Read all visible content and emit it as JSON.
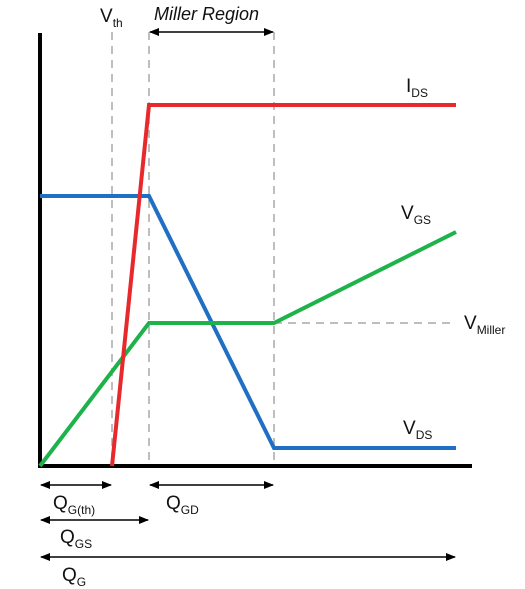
{
  "diagram": {
    "title": "Miller Region",
    "markers": {
      "vth": {
        "main": "V",
        "sub": "th"
      }
    },
    "curve_labels": {
      "ids": {
        "main": "I",
        "sub": "DS",
        "color": "#e8292b"
      },
      "vgs": {
        "main": "V",
        "sub": "GS",
        "color": "#1db34a"
      },
      "vds": {
        "main": "V",
        "sub": "DS",
        "color": "#1f6fc5"
      },
      "vmiller": {
        "main": "V",
        "sub": "Miller"
      }
    },
    "charge_labels": {
      "qgth": {
        "main": "Q",
        "sub": "G(th)"
      },
      "qgd": {
        "main": "Q",
        "sub": "GD"
      },
      "qgs": {
        "main": "Q",
        "sub": "GS"
      },
      "qg": {
        "main": "Q",
        "sub": "G"
      }
    },
    "colors": {
      "ids": "#e8292b",
      "vgs": "#1db34a",
      "vds": "#1f6fc5",
      "axis": "#000000",
      "dashed": "#a8a8a8"
    }
  }
}
